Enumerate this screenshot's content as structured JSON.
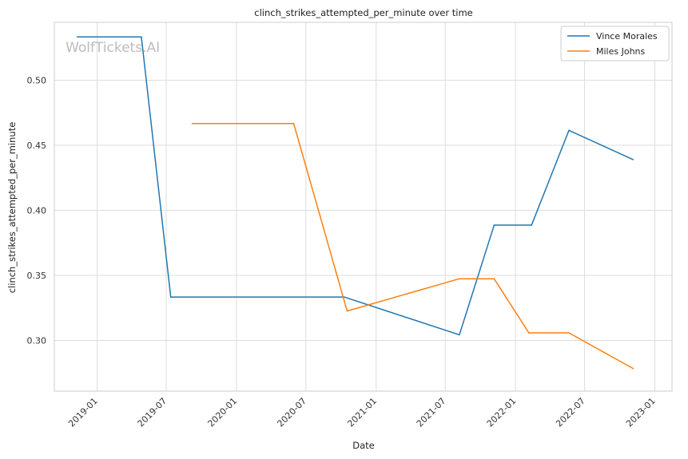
{
  "chart_data": {
    "type": "line",
    "title": "clinch_strikes_attempted_per_minute over time",
    "xlabel": "Date",
    "ylabel": "clinch_strikes_attempted_per_minute",
    "watermark": "WolfTickets.AI",
    "x_ticks": [
      "2019-01",
      "2019-07",
      "2020-01",
      "2020-07",
      "2021-01",
      "2021-07",
      "2022-01",
      "2022-07",
      "2023-01"
    ],
    "y_ticks": [
      "0.30",
      "0.35",
      "0.40",
      "0.45",
      "0.50"
    ],
    "xlim": [
      "2018-09-11",
      "2023-02-15"
    ],
    "ylim": [
      0.261,
      0.5445
    ],
    "grid": true,
    "legend_position": "top-right",
    "series": [
      {
        "name": "Vince Morales",
        "color": "#1f77b4",
        "points": [
          {
            "x": "2018-11-10",
            "y": 0.5333
          },
          {
            "x": "2019-04-27",
            "y": 0.5333
          },
          {
            "x": "2019-07-13",
            "y": 0.3333
          },
          {
            "x": "2020-10-10",
            "y": 0.3333
          },
          {
            "x": "2021-08-07",
            "y": 0.3043
          },
          {
            "x": "2021-11-06",
            "y": 0.3886
          },
          {
            "x": "2022-02-12",
            "y": 0.3886
          },
          {
            "x": "2022-05-21",
            "y": 0.4615
          },
          {
            "x": "2022-11-05",
            "y": 0.439
          }
        ]
      },
      {
        "name": "Miles Johns",
        "color": "#ff7f0e",
        "points": [
          {
            "x": "2019-09-07",
            "y": 0.4667
          },
          {
            "x": "2020-05-30",
            "y": 0.4667
          },
          {
            "x": "2020-10-17",
            "y": 0.3226
          },
          {
            "x": "2021-08-07",
            "y": 0.3474
          },
          {
            "x": "2021-11-06",
            "y": 0.3474
          },
          {
            "x": "2022-02-05",
            "y": 0.3058
          },
          {
            "x": "2022-05-21",
            "y": 0.3058
          },
          {
            "x": "2022-11-05",
            "y": 0.2784
          }
        ]
      }
    ]
  }
}
